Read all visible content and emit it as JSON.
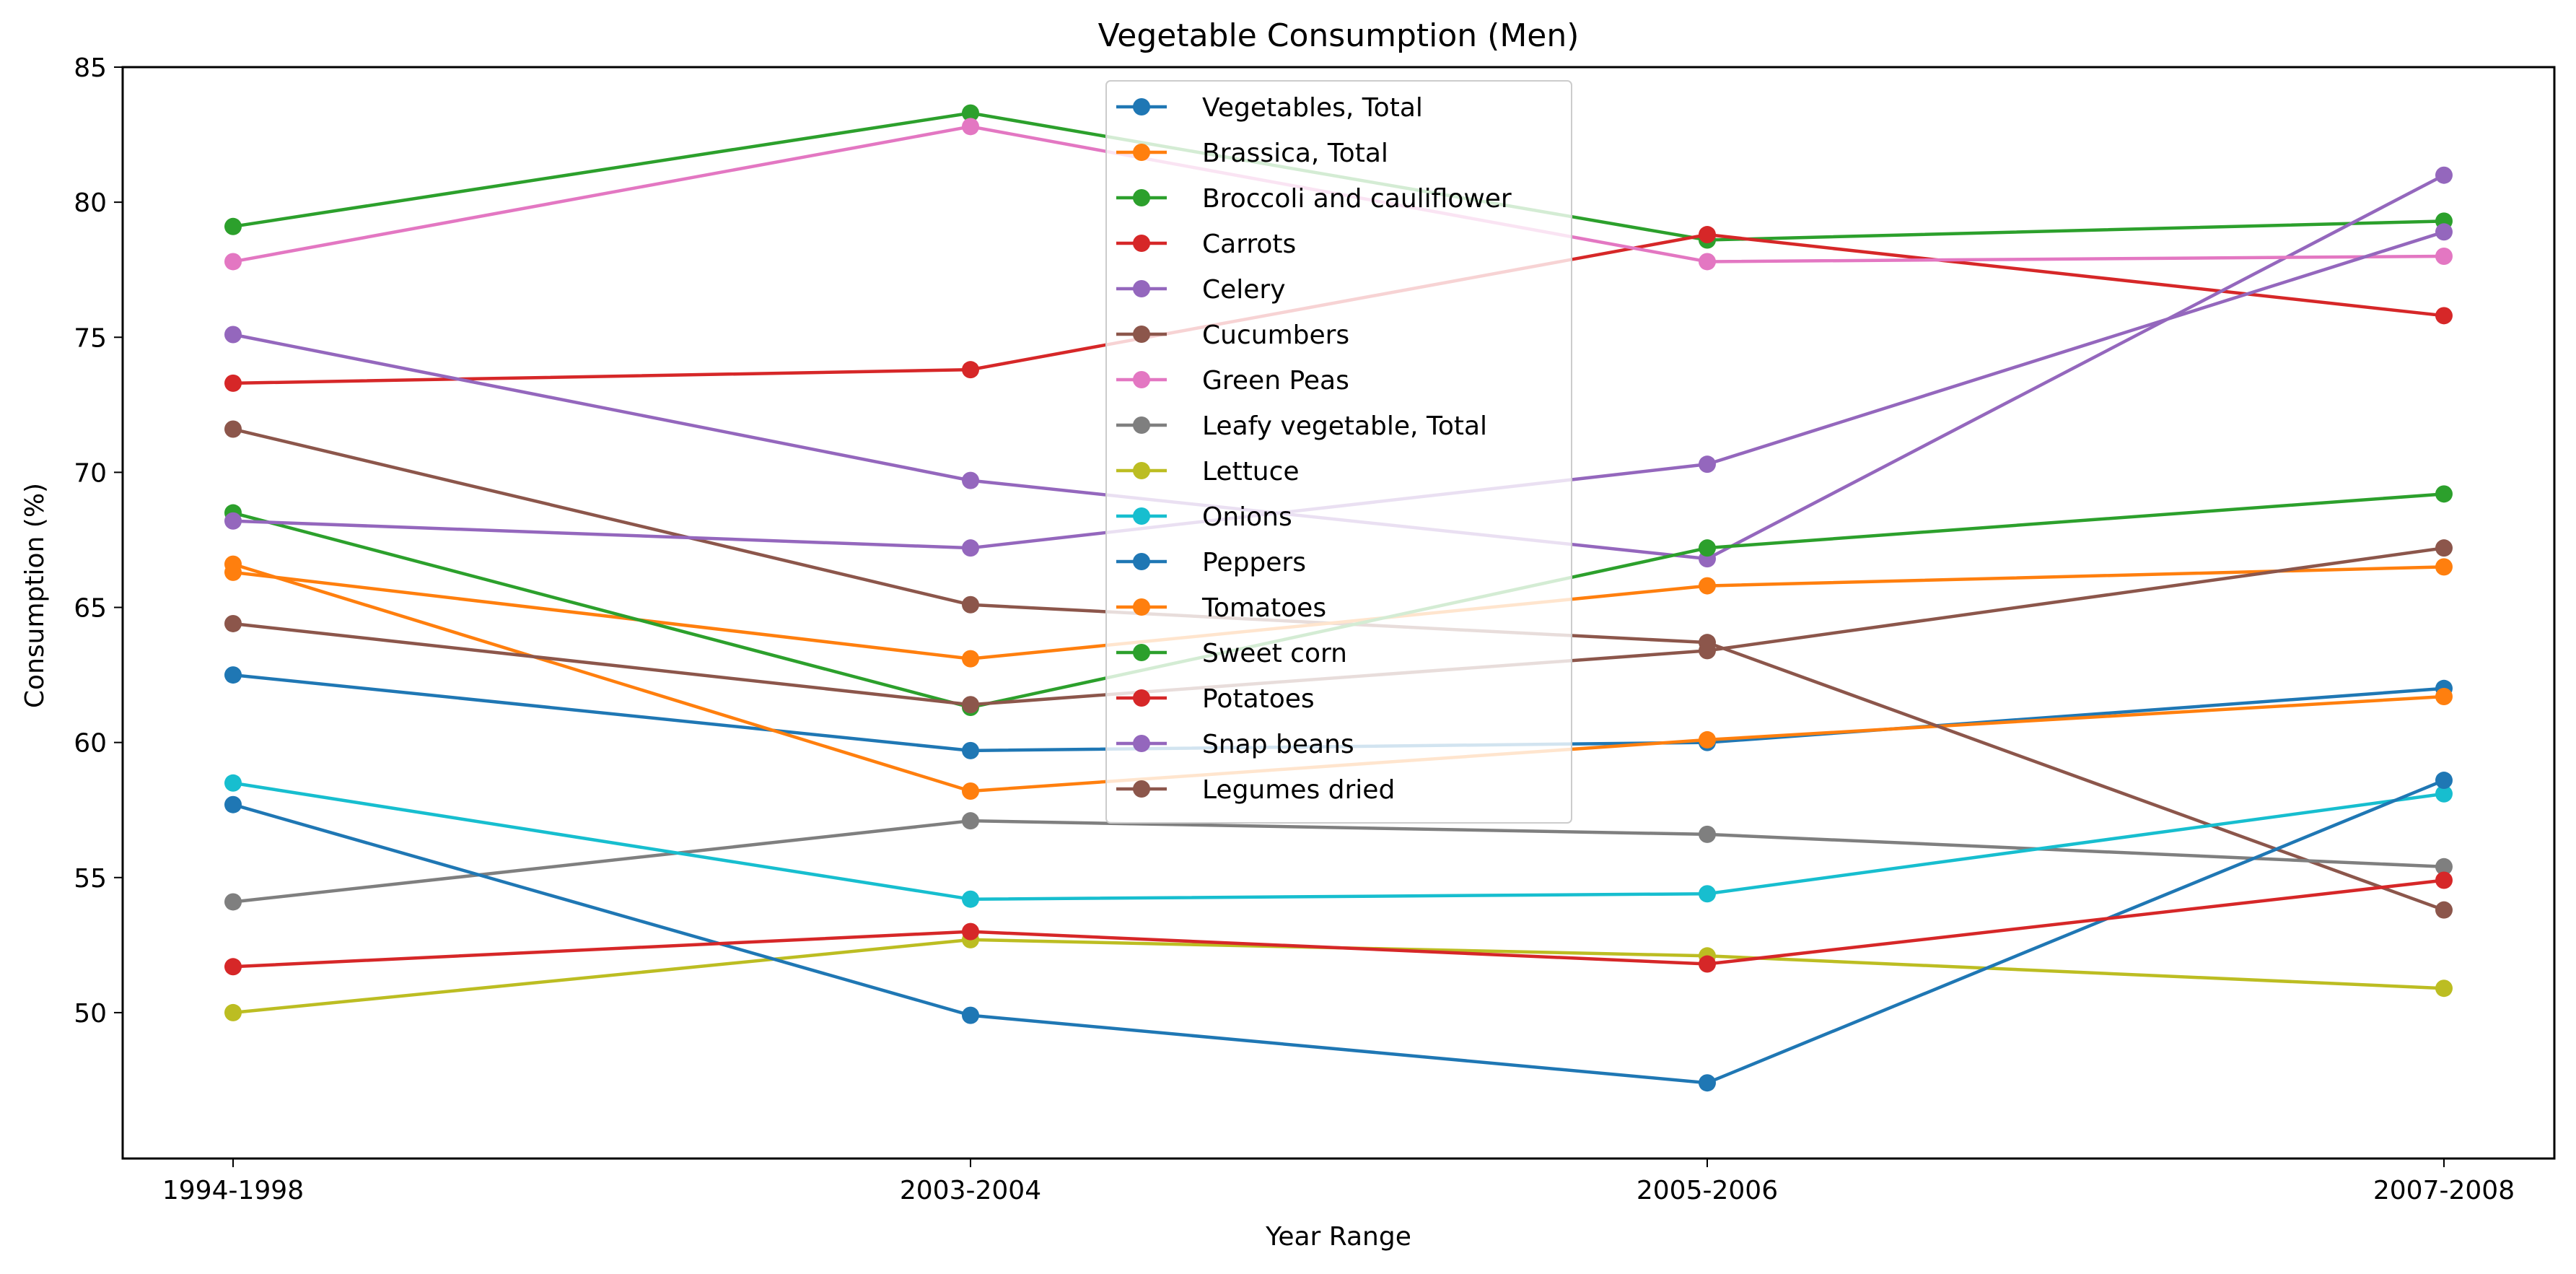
{
  "chart_data": {
    "type": "line",
    "title": "Vegetable Consumption (Men)",
    "xlabel": "Year Range",
    "ylabel": "Consumption (%)",
    "categories": [
      "1994-1998",
      "2003-2004",
      "2005-2006",
      "2007-2008"
    ],
    "ylim": [
      44.6,
      85.0
    ],
    "yticks": [
      50,
      55,
      60,
      65,
      70,
      75,
      80,
      85
    ],
    "grid": false,
    "legend_position": "top-center",
    "series": [
      {
        "name": "Vegetables, Total",
        "color": "#1f77b4",
        "values": [
          62.5,
          59.7,
          60.0,
          62.0
        ]
      },
      {
        "name": "Brassica, Total",
        "color": "#ff7f0e",
        "values": [
          66.6,
          58.2,
          60.1,
          61.7
        ]
      },
      {
        "name": "Broccoli and cauliflower",
        "color": "#2ca02c",
        "values": [
          79.1,
          83.3,
          78.6,
          79.3
        ]
      },
      {
        "name": "Carrots",
        "color": "#d62728",
        "values": [
          73.3,
          73.8,
          78.8,
          75.8
        ]
      },
      {
        "name": "Celery",
        "color": "#9467bd",
        "values": [
          75.1,
          69.7,
          66.8,
          81.0
        ]
      },
      {
        "name": "Cucumbers",
        "color": "#8c564b",
        "values": [
          71.6,
          65.1,
          63.7,
          53.8
        ]
      },
      {
        "name": "Green Peas",
        "color": "#e377c2",
        "values": [
          77.8,
          82.8,
          77.8,
          78.0
        ]
      },
      {
        "name": "Leafy vegetable, Total",
        "color": "#7f7f7f",
        "values": [
          54.1,
          57.1,
          56.6,
          55.4
        ]
      },
      {
        "name": "Lettuce",
        "color": "#bcbd22",
        "values": [
          50.0,
          52.7,
          52.1,
          50.9
        ]
      },
      {
        "name": "Onions",
        "color": "#17becf",
        "values": [
          58.5,
          54.2,
          54.4,
          58.1
        ]
      },
      {
        "name": "Peppers",
        "color": "#1f77b4",
        "values": [
          57.7,
          49.9,
          47.4,
          58.6
        ]
      },
      {
        "name": "Tomatoes",
        "color": "#ff7f0e",
        "values": [
          66.3,
          63.1,
          65.8,
          66.5
        ]
      },
      {
        "name": "Sweet corn",
        "color": "#2ca02c",
        "values": [
          68.5,
          61.3,
          67.2,
          69.2
        ]
      },
      {
        "name": "Potatoes",
        "color": "#d62728",
        "values": [
          51.7,
          53.0,
          51.8,
          54.9
        ]
      },
      {
        "name": "Snap beans",
        "color": "#9467bd",
        "values": [
          68.2,
          67.2,
          70.3,
          78.9
        ]
      },
      {
        "name": "Legumes dried",
        "color": "#8c564b",
        "values": [
          64.4,
          61.4,
          63.4,
          67.2
        ]
      }
    ]
  }
}
